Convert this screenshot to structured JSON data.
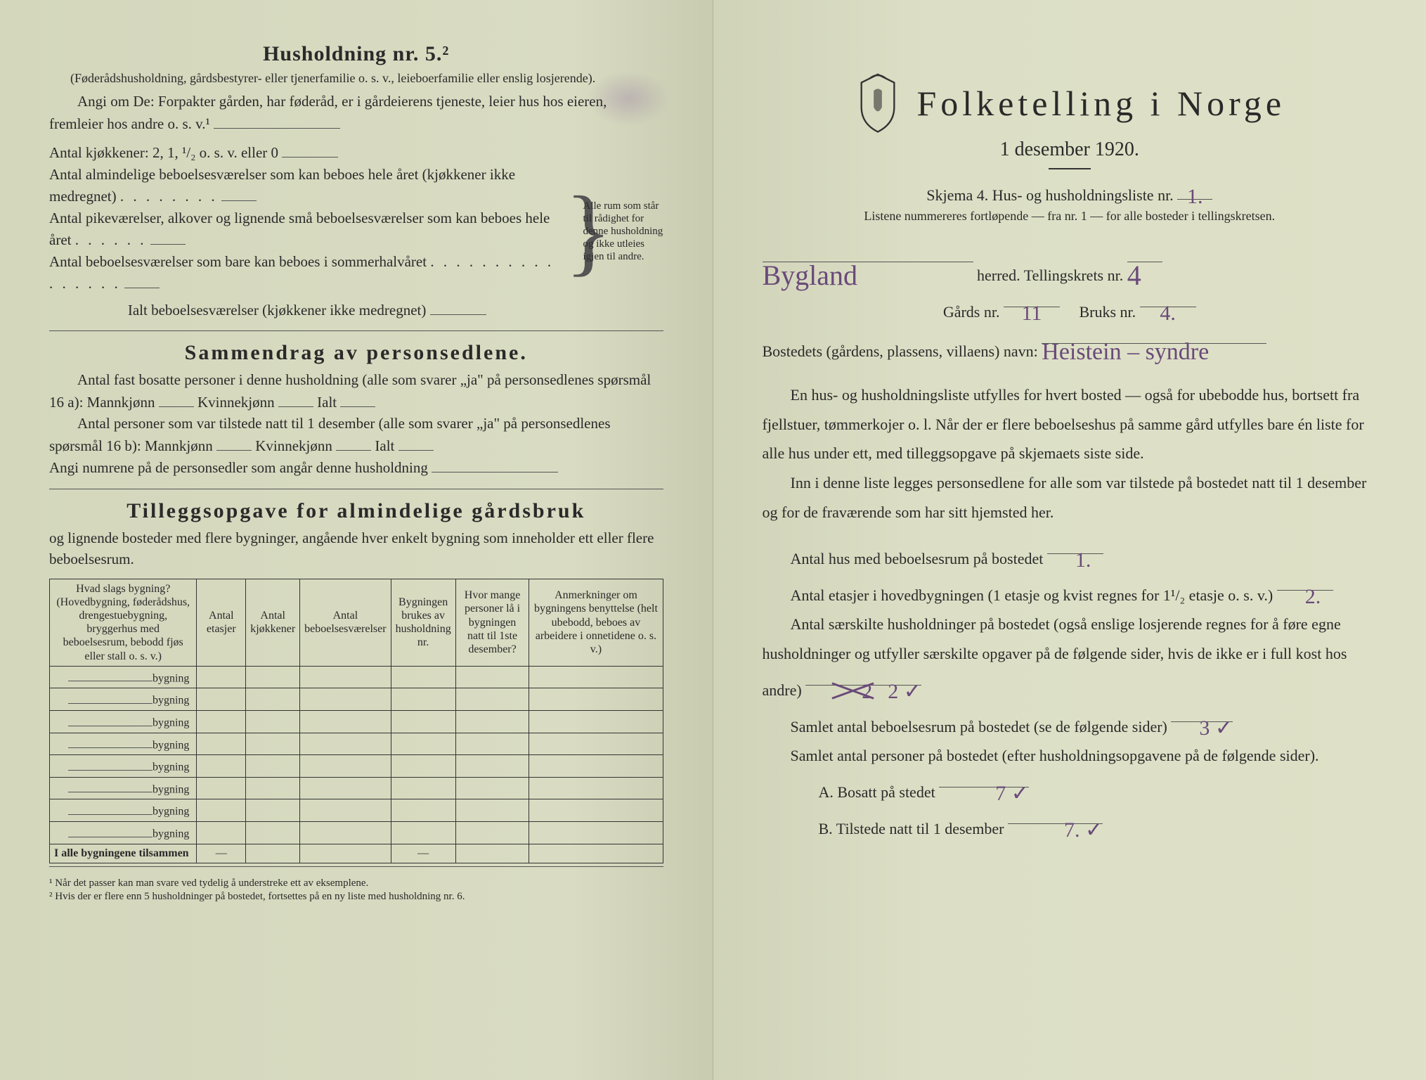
{
  "left": {
    "household_heading": "Husholdning nr. 5.²",
    "household_intro": "(Føderådshusholdning, gårdsbestyrer- eller tjenerfamilie o. s. v., leieboerfamilie eller enslig losjerende).",
    "angi_om": "Angi om De: Forpakter gården, har føderåd, er i gårdeierens tjeneste, leier hus hos eieren, fremleier hos andre o. s. v.¹",
    "kitchens_label": "Antal kjøkkener: 2, 1, ¹/₂ o. s. v. eller 0",
    "rooms_a": "Antal almindelige beboelsesværelser som kan beboes hele året (kjøkkener ikke medregnet)",
    "rooms_b": "Antal pikeværelser, alkover og lignende små beboelsesværelser som kan beboes hele året",
    "rooms_c": "Antal beboelsesværelser som bare kan beboes i sommerhalvåret",
    "rooms_total": "Ialt beboelsesværelser (kjøkkener ikke medregnet)",
    "brace_note": "Alle rum som står til rådighet for denne husholdning og ikke utleies igjen til andre.",
    "summary_heading": "Sammendrag av personsedlene.",
    "summary_line1a": "Antal fast bosatte personer i denne husholdning (alle som svarer „ja\" på personsedlenes spørsmål 16 a): Mannkjønn",
    "summary_kvin": "Kvinnekjønn",
    "summary_ialt": "Ialt",
    "summary_line2a": "Antal personer som var tilstede natt til 1 desember (alle som svarer „ja\" på personsedlenes spørsmål 16 b): Mannkjønn",
    "summary_line3": "Angi numrene på de personsedler som angår denne husholdning",
    "tillegg_heading": "Tilleggsopgave for almindelige gårdsbruk",
    "tillegg_intro": "og lignende bosteder med flere bygninger, angående hver enkelt bygning som inneholder ett eller flere beboelsesrum.",
    "table": {
      "headers": [
        "Hvad slags bygning?\n(Hovedbygning, føderådshus, drengestuebygning, bryggerhus med beboelsesrum, bebodd fjøs eller stall o. s. v.)",
        "Antal etasjer",
        "Antal kjøkkener",
        "Antal beboelsesværelser",
        "Bygningen brukes av husholdning nr.",
        "Hvor mange personer lå i bygningen natt til 1ste desember?",
        "Anmerkninger om bygningens benyttelse (helt ubebodd, beboes av arbeidere i onnetidene o. s. v.)"
      ],
      "row_suffix": "bygning",
      "row_count": 8,
      "total_label": "I alle bygningene tilsammen"
    },
    "footnote1": "¹ Når det passer kan man svare ved tydelig å understreke ett av eksemplene.",
    "footnote2": "² Hvis der er flere enn 5 husholdninger på bostedet, fortsettes på en ny liste med husholdning nr. 6."
  },
  "right": {
    "title": "Folketelling i Norge",
    "subtitle": "1 desember 1920.",
    "skjema_line": "Skjema 4.  Hus- og husholdningsliste nr.",
    "skjema_nr": "1.",
    "list_note": "Listene nummereres fortløpende — fra nr. 1 — for alle bosteder i tellingskretsen.",
    "herred_value": "Bygland",
    "herred_label": "herred.   Tellingskrets nr.",
    "krets_nr": "4",
    "gards_label": "Gårds nr.",
    "gards_nr": "11",
    "bruks_label": "Bruks nr.",
    "bruks_nr": "4.",
    "bosted_label": "Bostedets (gårdens, plassens, villaens) navn:",
    "bosted_value": "Heistein – syndre",
    "para1": "En hus- og husholdningsliste utfylles for hvert bosted — også for ubebodde hus, bortsett fra fjellstuer, tømmerkojer o. l.  Når der er flere beboelseshus på samme gård utfylles bare én liste for alle hus under ett, med tilleggsopgave på skjemaets siste side.",
    "para2": "Inn i denne liste legges personsedlene for alle som var tilstede på bostedet natt til 1 desember og for de fraværende som har sitt hjemsted her.",
    "q_hus": "Antal hus med beboelsesrum på bostedet",
    "q_hus_val": "1.",
    "q_etasjer": "Antal etasjer i hovedbygningen (1 etasje og kvist regnes for 1¹/₂ etasje o. s. v.)",
    "q_etasjer_val": "2.",
    "q_hush": "Antal særskilte husholdninger på bostedet (også enslige losjerende regnes for å føre egne husholdninger og utfyller særskilte opgaver på de følgende sider, hvis de ikke er i full kost hos andre)",
    "q_hush_crossed": "2",
    "q_hush_val": "2 ✓",
    "q_rum": "Samlet antal beboelsesrum på bostedet (se de følgende sider)",
    "q_rum_val": "3 ✓",
    "q_pers": "Samlet antal personer på bostedet (efter husholdningsopgavene på de følgende sider).",
    "q_a_label": "A.  Bosatt på stedet",
    "q_a_val": "7 ✓",
    "q_b_label": "B.  Tilstede natt til 1 desember",
    "q_b_val": "7. ✓"
  }
}
